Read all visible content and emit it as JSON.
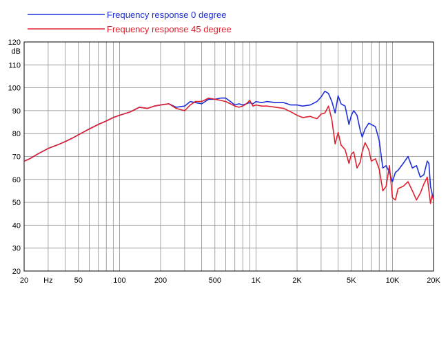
{
  "chart_data": {
    "type": "line",
    "xscale": "log",
    "xlim": [
      20,
      20000
    ],
    "ylim": [
      20,
      120
    ],
    "ylabel": "dB",
    "x_ticks": [
      20,
      50,
      100,
      200,
      500,
      1000,
      2000,
      5000,
      10000,
      20000
    ],
    "x_tick_labels": [
      "20",
      "50",
      "100",
      "200",
      "500",
      "1K",
      "2K",
      "5K",
      "10K",
      "20K"
    ],
    "x_unit_label": "Hz",
    "y_ticks": [
      20,
      30,
      40,
      50,
      60,
      70,
      80,
      90,
      100,
      110,
      120
    ],
    "y_tick_labels": [
      "20",
      "30",
      "40",
      "50",
      "60",
      "70",
      "80",
      "90",
      "100",
      "110",
      "120"
    ],
    "grid": true,
    "legend_position": "top-left",
    "series": [
      {
        "name": "Frequency response 0 degree",
        "color": "#1f2fd6",
        "x": [
          20,
          22,
          25,
          30,
          35,
          40,
          45,
          50,
          60,
          70,
          80,
          90,
          100,
          120,
          140,
          160,
          180,
          200,
          230,
          260,
          300,
          330,
          360,
          400,
          450,
          500,
          550,
          600,
          650,
          700,
          750,
          800,
          850,
          900,
          950,
          1000,
          1100,
          1200,
          1400,
          1600,
          1800,
          2000,
          2200,
          2500,
          2800,
          3000,
          3200,
          3400,
          3600,
          3800,
          4000,
          4200,
          4500,
          4800,
          5000,
          5200,
          5500,
          5800,
          6000,
          6300,
          6700,
          7000,
          7500,
          8000,
          8500,
          9000,
          9500,
          10000,
          10500,
          11000,
          12000,
          13000,
          14000,
          15000,
          16000,
          17000,
          18000,
          18500,
          19000,
          19500,
          20000
        ],
        "y": [
          68,
          69,
          71,
          73.5,
          75,
          76.5,
          78,
          79.5,
          82,
          84,
          85.5,
          87,
          88,
          89.5,
          91.5,
          91,
          92,
          92.5,
          93,
          91.5,
          92,
          94,
          93.5,
          93,
          95,
          95,
          95.5,
          95.5,
          94,
          92.5,
          93,
          92.5,
          93,
          93.5,
          93,
          94,
          93.5,
          94,
          93.5,
          93.5,
          92.5,
          92.5,
          92,
          92.5,
          94,
          96,
          98.5,
          97.5,
          94,
          89,
          96.5,
          93,
          92,
          84,
          88,
          90,
          88,
          81.5,
          78.5,
          82,
          84.5,
          84,
          83,
          77,
          65,
          66,
          63,
          59,
          63,
          64,
          67,
          70,
          65,
          66,
          61,
          62,
          68,
          67,
          57,
          54,
          51
        ]
      },
      {
        "name": "Frequency response 45 degree",
        "color": "#e0202e",
        "x": [
          20,
          22,
          25,
          30,
          35,
          40,
          45,
          50,
          60,
          70,
          80,
          90,
          100,
          120,
          140,
          160,
          180,
          200,
          230,
          260,
          300,
          330,
          360,
          400,
          450,
          500,
          550,
          600,
          650,
          700,
          750,
          800,
          850,
          900,
          950,
          1000,
          1100,
          1200,
          1400,
          1600,
          1800,
          2000,
          2200,
          2500,
          2800,
          3000,
          3200,
          3400,
          3600,
          3800,
          4000,
          4200,
          4500,
          4800,
          5000,
          5200,
          5500,
          5800,
          6000,
          6300,
          6700,
          7000,
          7500,
          8000,
          8500,
          9000,
          9500,
          10000,
          10500,
          11000,
          12000,
          13000,
          14000,
          15000,
          16000,
          17000,
          18000,
          18500,
          19000,
          19500,
          20000
        ],
        "y": [
          68,
          69,
          71,
          73.5,
          75,
          76.5,
          78,
          79.5,
          82,
          84,
          85.5,
          87,
          88,
          89.5,
          91.5,
          91,
          92,
          92.5,
          93,
          91,
          90,
          92.5,
          94,
          94,
          95.5,
          95,
          94.5,
          94,
          93,
          92,
          91.5,
          92,
          93,
          94.5,
          92,
          92.5,
          92,
          92,
          91.5,
          91,
          89.5,
          88,
          87,
          87.5,
          86.5,
          88.5,
          89,
          92,
          86,
          75.5,
          80.5,
          75,
          73,
          67,
          71,
          72,
          65,
          67.5,
          72,
          76,
          73,
          68,
          69,
          64.5,
          55,
          57,
          66,
          52,
          51,
          56,
          57,
          59,
          55,
          51,
          54,
          58,
          61,
          55,
          49.5,
          53,
          51
        ]
      }
    ]
  }
}
